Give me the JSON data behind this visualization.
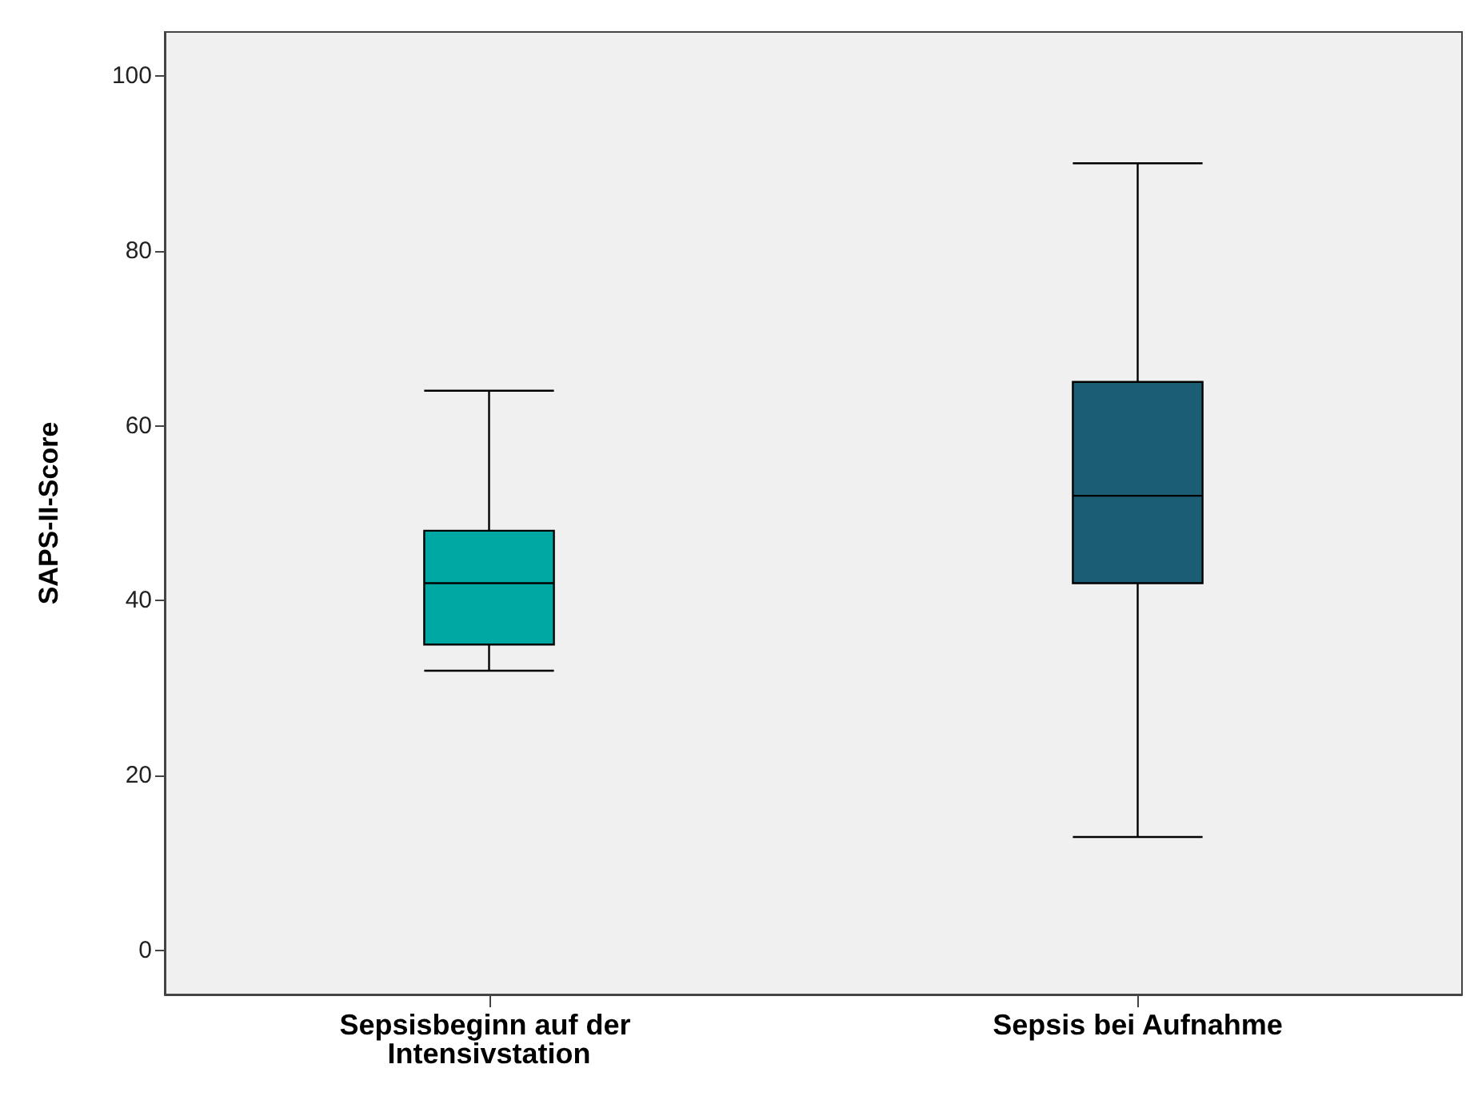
{
  "chart_data": {
    "type": "box",
    "ylabel": "SAPS-II-Score",
    "categories": [
      "Sepsisbeginn auf der Intensivstation",
      "Sepsis bei Aufnahme"
    ],
    "boxes": [
      {
        "low": 32,
        "q1": 35,
        "median": 42,
        "q3": 48,
        "high": 64
      },
      {
        "low": 13,
        "q1": 42,
        "median": 52,
        "q3": 65,
        "high": 90
      }
    ],
    "colors": [
      "#00a8a3",
      "#1b5d72"
    ],
    "ylim": [
      -5,
      105
    ],
    "yticks": [
      0,
      20,
      40,
      60,
      80,
      100
    ],
    "grid": false
  }
}
